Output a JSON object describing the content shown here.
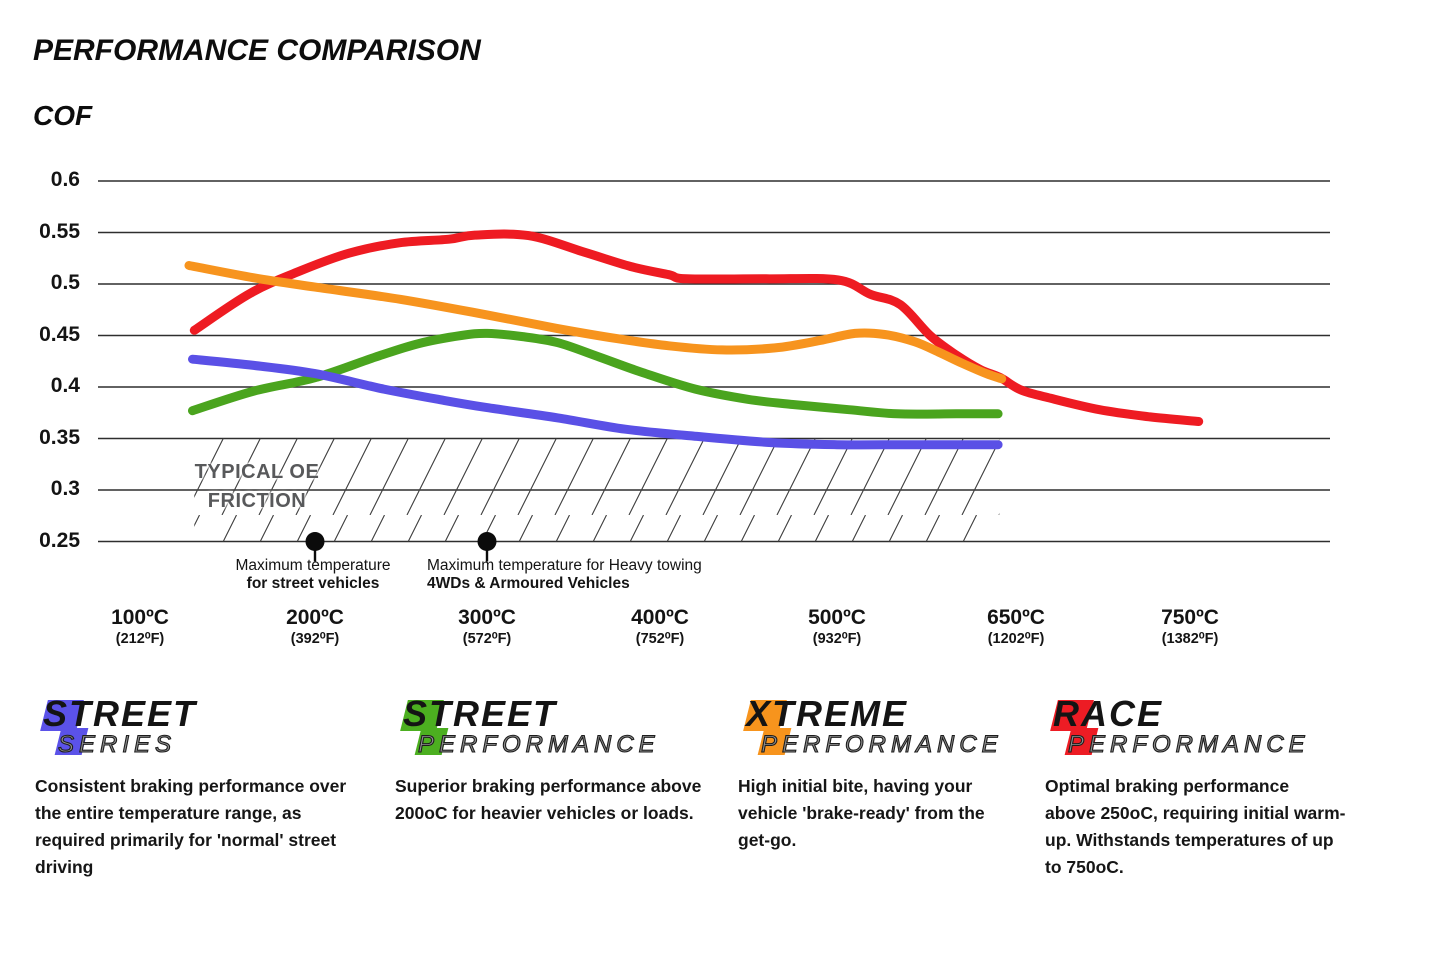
{
  "title": "PERFORMANCE COMPARISON",
  "axis_title": "COF",
  "chart_data": {
    "type": "line",
    "ylabel": "COF",
    "ylim": [
      0.25,
      0.6
    ],
    "grid": "horizontal",
    "y_ticks": [
      {
        "v": 0.6,
        "label": "0.6"
      },
      {
        "v": 0.55,
        "label": "0.55"
      },
      {
        "v": 0.5,
        "label": "0.5"
      },
      {
        "v": 0.45,
        "label": "0.45"
      },
      {
        "v": 0.4,
        "label": "0.4"
      },
      {
        "v": 0.35,
        "label": "0.35"
      },
      {
        "v": 0.3,
        "label": "0.3"
      },
      {
        "v": 0.25,
        "label": "0.25"
      }
    ],
    "x_ticks": [
      {
        "t": 100,
        "c": "100ºC",
        "f": "(212⁰F)"
      },
      {
        "t": 200,
        "c": "200ºC",
        "f": "(392⁰F)"
      },
      {
        "t": 300,
        "c": "300ºC",
        "f": "(572⁰F)"
      },
      {
        "t": 400,
        "c": "400ºC",
        "f": "(752⁰F)"
      },
      {
        "t": 500,
        "c": "500ºC",
        "f": "(932⁰F)"
      },
      {
        "t": 650,
        "c": "650ºC",
        "f": "(1202⁰F)"
      },
      {
        "t": 750,
        "c": "750ºC",
        "f": "(1382⁰F)"
      }
    ],
    "series": [
      {
        "name": "Street Performance",
        "color": "#4aa41e",
        "points": [
          [
            130,
            0.377
          ],
          [
            165,
            0.396
          ],
          [
            200,
            0.409
          ],
          [
            235,
            0.429
          ],
          [
            260,
            0.442
          ],
          [
            285,
            0.45
          ],
          [
            300,
            0.452
          ],
          [
            320,
            0.449
          ],
          [
            341,
            0.443
          ],
          [
            365,
            0.429
          ],
          [
            390,
            0.414
          ],
          [
            420,
            0.398
          ],
          [
            450,
            0.388
          ],
          [
            475,
            0.383
          ],
          [
            510,
            0.378
          ],
          [
            550,
            0.374
          ],
          [
            600,
            0.374
          ],
          [
            635,
            0.374
          ]
        ]
      },
      {
        "name": "Street Series",
        "color": "#5a50e6",
        "points": [
          [
            130,
            0.427
          ],
          [
            165,
            0.421
          ],
          [
            200,
            0.413
          ],
          [
            240,
            0.398
          ],
          [
            275,
            0.387
          ],
          [
            300,
            0.38
          ],
          [
            341,
            0.37
          ],
          [
            380,
            0.359
          ],
          [
            421,
            0.352
          ],
          [
            463,
            0.346
          ],
          [
            500,
            0.344
          ],
          [
            560,
            0.344
          ],
          [
            635,
            0.344
          ]
        ]
      },
      {
        "name": "Race Performance",
        "color": "#ee1b22",
        "points": [
          [
            131,
            0.455
          ],
          [
            163,
            0.491
          ],
          [
            192,
            0.513
          ],
          [
            220,
            0.53
          ],
          [
            249,
            0.54
          ],
          [
            278,
            0.5435
          ],
          [
            293,
            0.5475
          ],
          [
            324,
            0.547
          ],
          [
            356,
            0.531
          ],
          [
            383,
            0.517
          ],
          [
            405,
            0.509
          ],
          [
            415,
            0.505
          ],
          [
            460,
            0.505
          ],
          [
            501,
            0.504
          ],
          [
            528,
            0.49
          ],
          [
            553,
            0.48
          ],
          [
            578,
            0.45
          ],
          [
            600,
            0.431
          ],
          [
            620,
            0.417
          ],
          [
            637,
            0.409
          ],
          [
            653,
            0.397
          ],
          [
            670,
            0.389
          ],
          [
            698,
            0.378
          ],
          [
            727,
            0.371
          ],
          [
            755,
            0.3665
          ]
        ]
      },
      {
        "name": "Xtreme Performance",
        "color": "#f7941e",
        "points": [
          [
            128,
            0.518
          ],
          [
            165,
            0.506
          ],
          [
            200,
            0.497
          ],
          [
            250,
            0.485
          ],
          [
            300,
            0.47
          ],
          [
            340,
            0.457
          ],
          [
            375,
            0.447
          ],
          [
            405,
            0.44
          ],
          [
            435,
            0.436
          ],
          [
            465,
            0.438
          ],
          [
            490,
            0.445
          ],
          [
            515,
            0.452
          ],
          [
            540,
            0.451
          ],
          [
            565,
            0.444
          ],
          [
            585,
            0.434
          ],
          [
            605,
            0.423
          ],
          [
            625,
            0.413
          ],
          [
            638,
            0.408
          ]
        ]
      }
    ],
    "oe_band": {
      "label": "TYPICAL OE\nFRICTION",
      "cof_from": 0.25,
      "cof_to": 0.35,
      "t_start": 131,
      "t_end": 636
    },
    "markers": [
      {
        "t": 200,
        "v": 0.25,
        "line1": "Maximum temperature",
        "line2": "for street vehicles"
      },
      {
        "t": 300,
        "v": 0.25,
        "line1": "Maximum temperature for Heavy towing",
        "line2": "4WDs & Armoured Vehicles"
      }
    ]
  },
  "legend": [
    {
      "word1": "STREET",
      "word2": "SERIES",
      "color": "#5b52e8",
      "desc": "Consistent braking performance over\nthe entire temperature range, as\nrequired primarily for 'normal' street\ndriving"
    },
    {
      "word1": "STREET",
      "word2": "PERFORMANCE",
      "color": "#4caf20",
      "desc": "Superior braking performance above\n200oC for heavier vehicles or loads."
    },
    {
      "word1": "XTREME",
      "word2": "PERFORMANCE",
      "color": "#f7941d",
      "desc": "High initial bite, having your\nvehicle 'brake-ready' from the\nget-go."
    },
    {
      "word1": "RACE",
      "word2": "PERFORMANCE",
      "color": "#ed1c24",
      "desc": "Optimal braking performance\nabove 250oC, requiring initial warm-\nup. Withstands temperatures of up\nto 750oC."
    }
  ]
}
